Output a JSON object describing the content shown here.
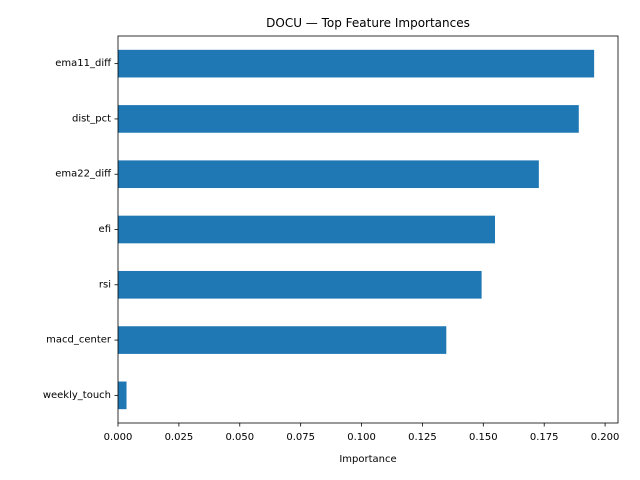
{
  "chart_data": {
    "type": "bar",
    "orientation": "horizontal",
    "title": "DOCU — Top Feature Importances",
    "xlabel": "Importance",
    "ylabel": "",
    "categories": [
      "ema11_diff",
      "dist_pct",
      "ema22_diff",
      "efi",
      "rsi",
      "macd_center",
      "weekly_touch"
    ],
    "values": [
      0.1955,
      0.1892,
      0.1728,
      0.1548,
      0.1493,
      0.1348,
      0.0035
    ],
    "xlim": [
      0.0,
      0.2053
    ],
    "xticks": [
      "0.000",
      "0.025",
      "0.050",
      "0.075",
      "0.100",
      "0.125",
      "0.150",
      "0.175",
      "0.200"
    ],
    "xtick_values": [
      0,
      0.025,
      0.05,
      0.075,
      0.1,
      0.125,
      0.15,
      0.175,
      0.2
    ],
    "bar_color": "#1f77b4",
    "grid": false,
    "legend": "none"
  }
}
